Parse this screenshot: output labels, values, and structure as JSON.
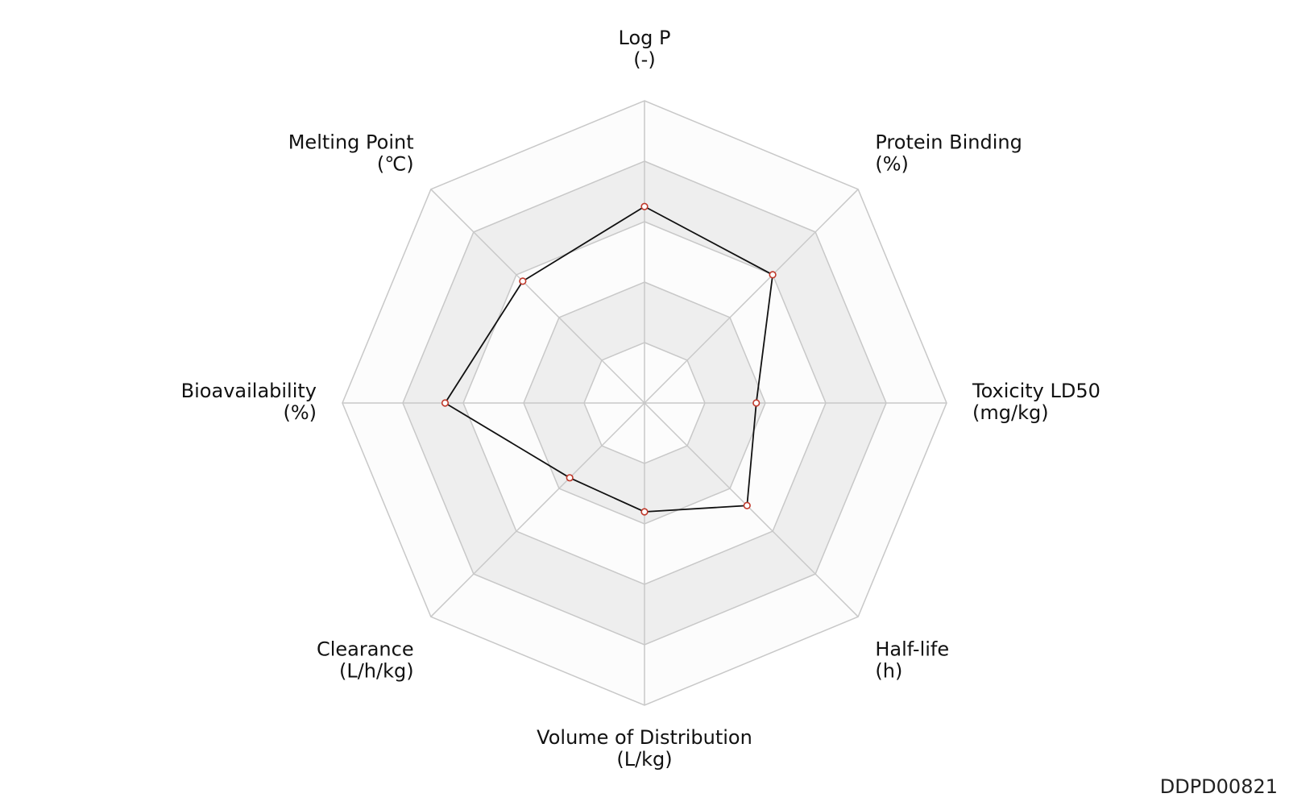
{
  "chart_data": {
    "type": "radar",
    "title": "",
    "axes": [
      {
        "name": "Log P",
        "unit": "(-)"
      },
      {
        "name": "Protein Binding",
        "unit": "(%)"
      },
      {
        "name": "Toxicity LD50",
        "unit": "(mg/kg)"
      },
      {
        "name": "Half-life",
        "unit": "(h)"
      },
      {
        "name": "Volume of Distribution",
        "unit": "(L/kg)"
      },
      {
        "name": "Clearance",
        "unit": "(L/h/kg)"
      },
      {
        "name": "Bioavailability",
        "unit": "(%)"
      },
      {
        "name": "Melting Point",
        "unit": "(℃)"
      }
    ],
    "values": [
      0.65,
      0.6,
      0.37,
      0.48,
      0.36,
      0.35,
      0.66,
      0.57
    ],
    "range": [
      0,
      1
    ],
    "rings": 5,
    "colors": {
      "band_light": "#fcfcfc",
      "band_dark": "#eeeeee",
      "grid": "#c8c8c8",
      "series_line": "#111111",
      "marker_stroke": "#c0392b",
      "marker_fill": "#ffffff"
    }
  },
  "corner_id": "DDPD00821"
}
